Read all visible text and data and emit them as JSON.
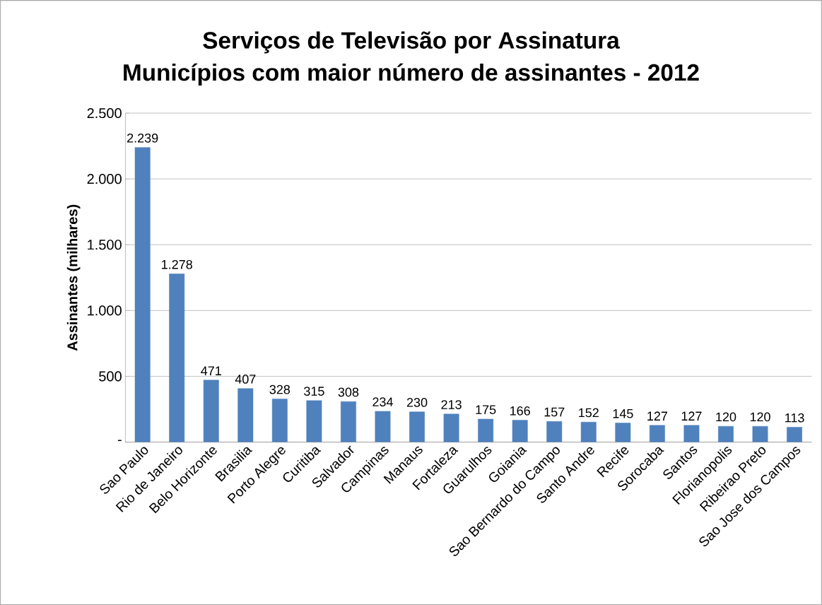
{
  "chart_data": {
    "type": "bar",
    "title": "Serviços de Televisão por Assinatura",
    "subtitle": "Municípios com maior número de assinantes - 2012",
    "ylabel": "Assinantes (milhares)",
    "categories": [
      "Sao Paulo",
      "Rio de Janeiro",
      "Belo Horizonte",
      "Brasilia",
      "Porto Alegre",
      "Curitiba",
      "Salvador",
      "Campinas",
      "Manaus",
      "Fortaleza",
      "Guarulhos",
      "Goiania",
      "Sao Bernardo do Campo",
      "Santo Andre",
      "Recife",
      "Sorocaba",
      "Santos",
      "Florianopolis",
      "Ribeirao Preto",
      "Sao Jose dos Campos"
    ],
    "values": [
      2239,
      1278,
      471,
      407,
      328,
      315,
      308,
      234,
      230,
      213,
      175,
      166,
      157,
      152,
      145,
      127,
      127,
      120,
      120,
      113
    ],
    "value_labels": [
      "2.239",
      "1.278",
      "471",
      "407",
      "328",
      "315",
      "308",
      "234",
      "230",
      "213",
      "175",
      "166",
      "157",
      "152",
      "145",
      "127",
      "127",
      "120",
      "120",
      "113"
    ],
    "color": "#4f81bd",
    "ylim": [
      0,
      2500
    ],
    "yticks": [
      {
        "value": 0,
        "label": "-"
      },
      500,
      {
        "value": 1000,
        "label": "1.000"
      },
      {
        "value": 1500,
        "label": "1.500"
      },
      {
        "value": 2000,
        "label": "2.000"
      },
      {
        "value": 2500,
        "label": "2.500"
      }
    ],
    "grid": "y"
  }
}
